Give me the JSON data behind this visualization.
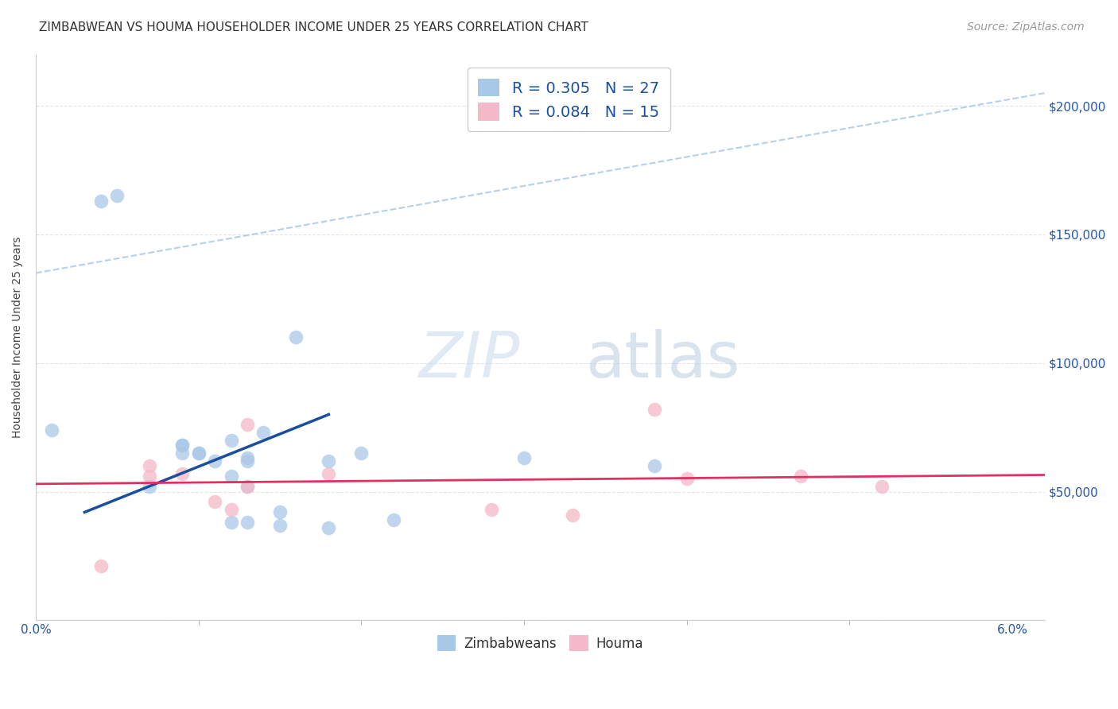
{
  "title": "ZIMBABWEAN VS HOUMA HOUSEHOLDER INCOME UNDER 25 YEARS CORRELATION CHART",
  "source": "Source: ZipAtlas.com",
  "ylabel": "Householder Income Under 25 years",
  "xlim": [
    0.0,
    0.062
  ],
  "ylim": [
    0,
    220000
  ],
  "yticks": [
    0,
    50000,
    100000,
    150000,
    200000
  ],
  "ytick_labels": [
    "",
    "$50,000",
    "$100,000",
    "$150,000",
    "$200,000"
  ],
  "xtick_positions": [
    0.0,
    0.06
  ],
  "xtick_labels": [
    "0.0%",
    "6.0%"
  ],
  "legend_r1": "R = 0.305",
  "legend_n1": "N = 27",
  "legend_r2": "R = 0.084",
  "legend_n2": "N = 15",
  "zim_color": "#a8c8e8",
  "houma_color": "#f5b8c8",
  "zim_line_color": "#1a4fa0",
  "houma_line_color": "#e03060",
  "dashed_line_color": "#a8c8e8",
  "background_color": "#ffffff",
  "grid_color": "#dde5f0",
  "zim_points_x": [
    0.001,
    0.004,
    0.005,
    0.007,
    0.009,
    0.009,
    0.009,
    0.01,
    0.01,
    0.011,
    0.012,
    0.012,
    0.012,
    0.013,
    0.013,
    0.013,
    0.013,
    0.014,
    0.015,
    0.015,
    0.016,
    0.018,
    0.018,
    0.02,
    0.022,
    0.03,
    0.038
  ],
  "zim_points_y": [
    74000,
    163000,
    165000,
    52000,
    68000,
    65000,
    68000,
    65000,
    65000,
    62000,
    70000,
    56000,
    38000,
    38000,
    63000,
    52000,
    62000,
    73000,
    42000,
    37000,
    110000,
    62000,
    36000,
    65000,
    39000,
    63000,
    60000
  ],
  "houma_points_x": [
    0.004,
    0.007,
    0.007,
    0.009,
    0.011,
    0.012,
    0.013,
    0.013,
    0.018,
    0.028,
    0.033,
    0.038,
    0.04,
    0.047,
    0.052
  ],
  "houma_points_y": [
    21000,
    56000,
    60000,
    57000,
    46000,
    43000,
    76000,
    52000,
    57000,
    43000,
    41000,
    82000,
    55000,
    56000,
    52000
  ],
  "zim_trend_x": [
    0.003,
    0.018
  ],
  "zim_trend_y": [
    42000,
    80000
  ],
  "houma_trend_x": [
    0.0,
    0.062
  ],
  "houma_trend_y": [
    53000,
    56500
  ],
  "dashed_trend_x": [
    0.0,
    0.062
  ],
  "dashed_trend_y": [
    135000,
    205000
  ],
  "title_fontsize": 11,
  "source_fontsize": 10,
  "axis_label_fontsize": 10,
  "tick_fontsize": 11,
  "legend_fontsize": 14,
  "marker_size": 160
}
